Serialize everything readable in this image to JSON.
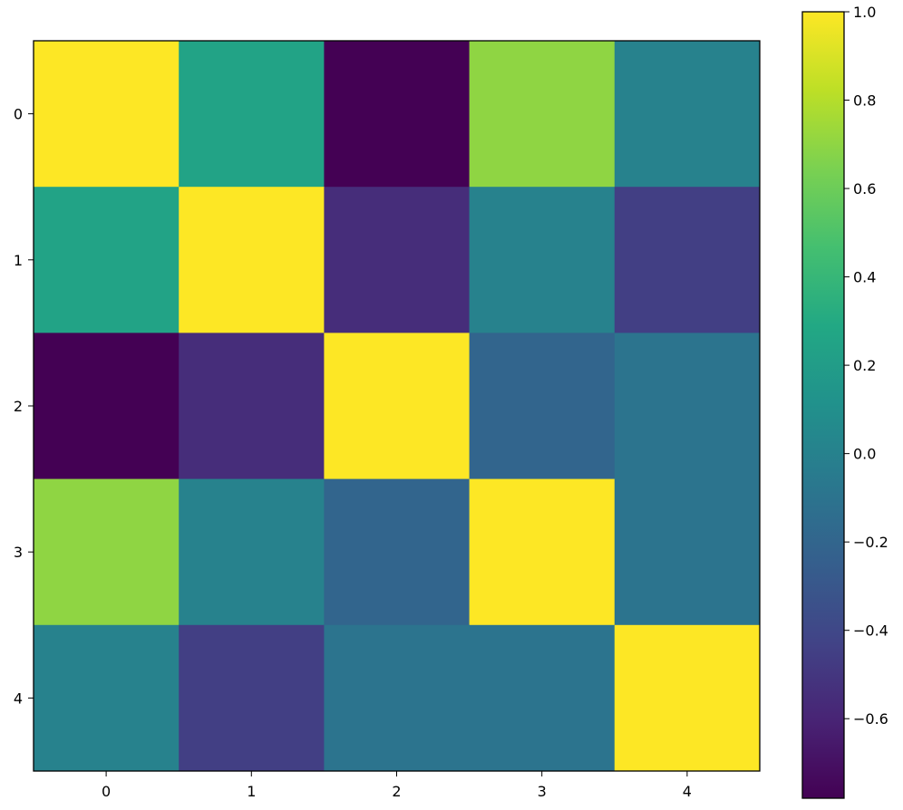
{
  "chart_data": {
    "type": "heatmap",
    "title": "",
    "xlabel": "",
    "ylabel": "",
    "x_ticks": [
      "0",
      "1",
      "2",
      "3",
      "4"
    ],
    "y_ticks": [
      "0",
      "1",
      "2",
      "3",
      "4"
    ],
    "values": [
      [
        1.0,
        0.25,
        -0.78,
        0.7,
        0.0
      ],
      [
        0.25,
        1.0,
        -0.55,
        0.0,
        -0.45
      ],
      [
        -0.78,
        -0.55,
        1.0,
        -0.2,
        -0.1
      ],
      [
        0.7,
        0.0,
        -0.2,
        1.0,
        -0.1
      ],
      [
        0.0,
        -0.45,
        -0.1,
        -0.1,
        1.0
      ]
    ],
    "colorbar": {
      "vmin": -0.78,
      "vmax": 1.0,
      "ticks": [
        1.0,
        0.8,
        0.6,
        0.4,
        0.2,
        0.0,
        -0.2,
        -0.4,
        -0.6
      ],
      "tick_labels": [
        "1.0",
        "0.8",
        "0.6",
        "0.4",
        "0.2",
        "0.0",
        "−0.2",
        "−0.4",
        "−0.6"
      ]
    },
    "colormap": "viridis",
    "grid": false
  }
}
